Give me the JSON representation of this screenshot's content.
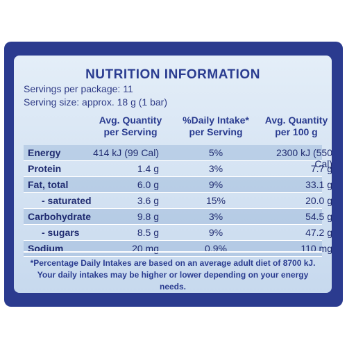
{
  "title": "NUTRITION INFORMATION",
  "servings_per_package": "Servings per package: 11",
  "serving_size": "Serving size: approx. 18 g (1 bar)",
  "columns": {
    "avg_serving": [
      "Avg. Quantity",
      "per Serving"
    ],
    "daily_intake": [
      "%Daily Intake*",
      "per Serving"
    ],
    "avg_100g": [
      "Avg. Quantity",
      "per 100 g"
    ]
  },
  "rows": [
    {
      "label": "Energy",
      "per_serving": "414 kJ (99 Cal)",
      "daily_intake": "5%",
      "per_100g": "2300 kJ (550 Cal)"
    },
    {
      "label": "Protein",
      "per_serving": "1.4 g",
      "daily_intake": "3%",
      "per_100g": "7.7 g"
    },
    {
      "label": "Fat, total",
      "per_serving": "6.0 g",
      "daily_intake": "9%",
      "per_100g": "33.1 g"
    },
    {
      "label": "- saturated",
      "per_serving": "3.6 g",
      "daily_intake": "15%",
      "per_100g": "20.0 g"
    },
    {
      "label": "Carbohydrate",
      "per_serving": "9.8 g",
      "daily_intake": "3%",
      "per_100g": "54.5 g"
    },
    {
      "label": "- sugars",
      "per_serving": "8.5 g",
      "daily_intake": "9%",
      "per_100g": "47.2 g"
    },
    {
      "label": "Sodium",
      "per_serving": "20 mg",
      "daily_intake": "0.9%",
      "per_100g": "110 mg"
    }
  ],
  "footnote": [
    "*Percentage Daily Intakes are based on an average adult diet of 8700 kJ.",
    "Your daily intakes may be higher or lower depending on your energy needs."
  ],
  "colors": {
    "frame": "#2b3b8f",
    "panel_top": "#e4eef8",
    "panel_bottom": "#c7d9ee",
    "text": "#2a3c90"
  }
}
